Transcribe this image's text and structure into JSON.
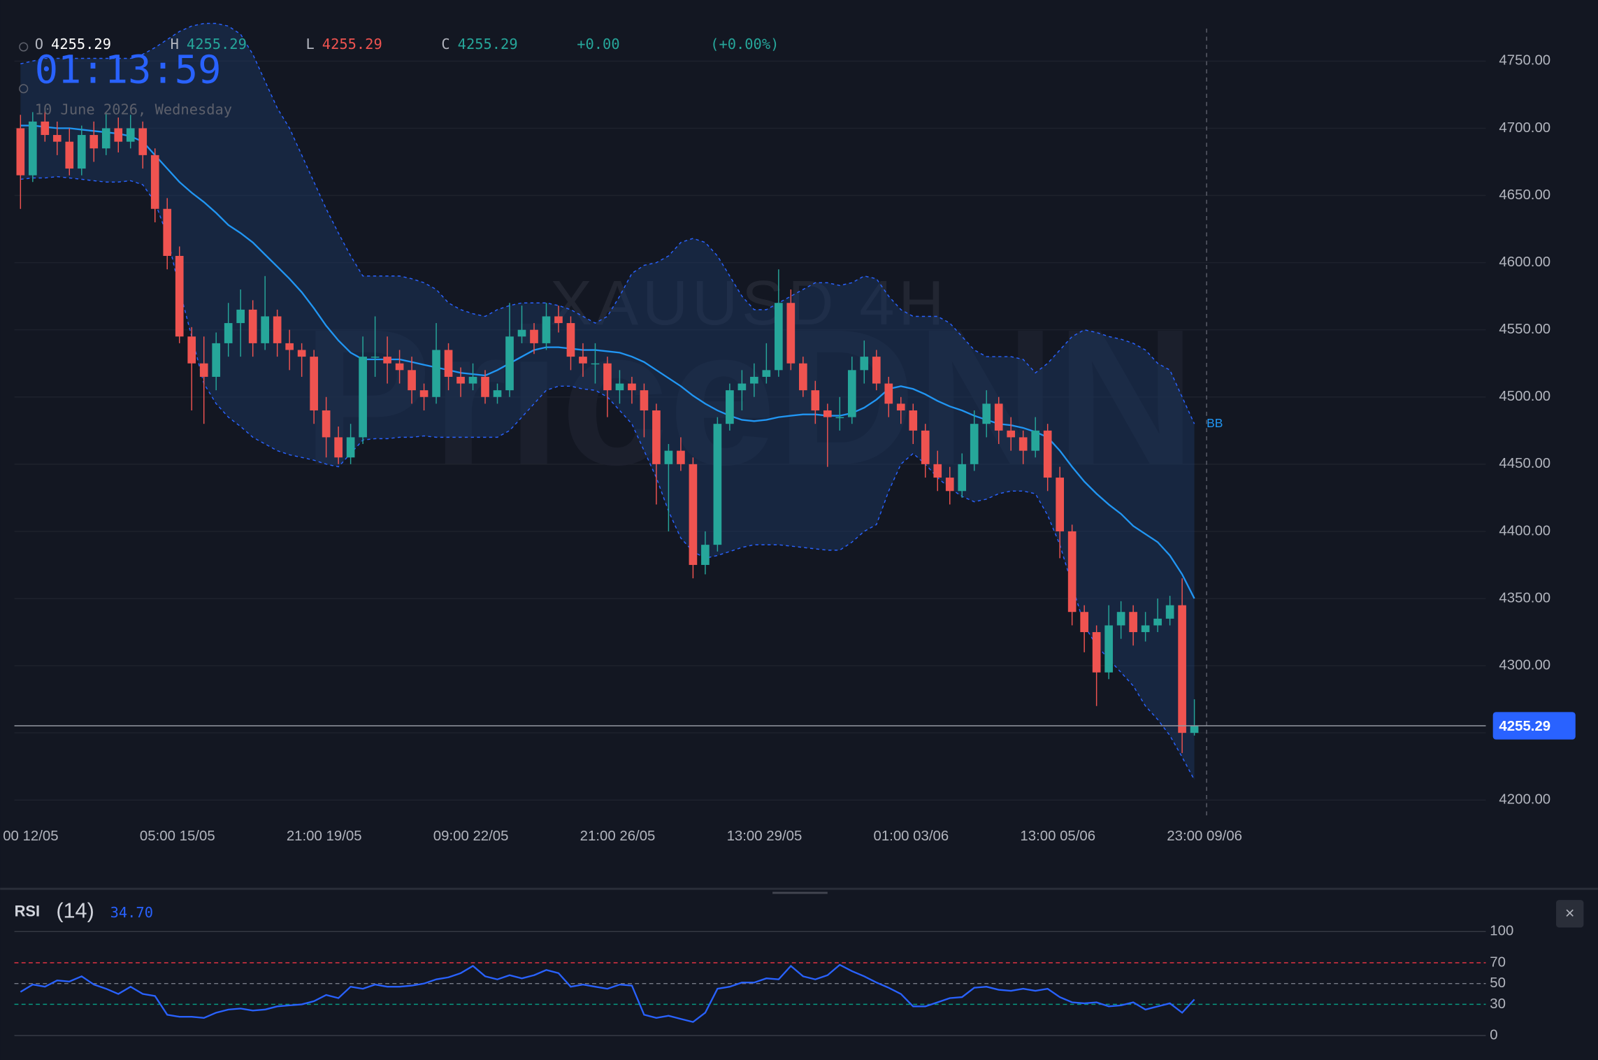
{
  "header": {
    "o_label": "O",
    "o": "4255.29",
    "h_label": "H",
    "h": "4255.29",
    "l_label": "L",
    "l": "4255.29",
    "c_label": "C",
    "c": "4255.29",
    "change": "+0.00",
    "change_pct": "(+0.00%)",
    "clock": "01:13:59",
    "date": "10 June 2026, Wednesday"
  },
  "chart_data": [
    {
      "type": "candlestick",
      "watermark": "XAUUSD 4H",
      "watermark_brand": "PriceDNN",
      "up_color": "#26a69a",
      "down_color": "#ef5350",
      "categories": [
        "00 12/05",
        null,
        null,
        null,
        null,
        null,
        null,
        null,
        null,
        null,
        null,
        null,
        "05:00 15/05",
        null,
        null,
        null,
        null,
        null,
        null,
        null,
        null,
        null,
        null,
        null,
        "21:00 19/05",
        null,
        null,
        null,
        null,
        null,
        null,
        null,
        null,
        null,
        null,
        null,
        "09:00 22/05",
        null,
        null,
        null,
        null,
        null,
        null,
        null,
        null,
        null,
        null,
        null,
        "21:00 26/05",
        null,
        null,
        null,
        null,
        null,
        null,
        null,
        null,
        null,
        null,
        null,
        "13:00 29/05",
        null,
        null,
        null,
        null,
        null,
        null,
        null,
        null,
        null,
        null,
        null,
        "01:00 03/06",
        null,
        null,
        null,
        null,
        null,
        null,
        null,
        null,
        null,
        null,
        null,
        "13:00 05/06",
        null,
        null,
        null,
        null,
        null,
        null,
        null,
        null,
        null,
        null,
        null,
        "23:00 09/06"
      ],
      "ohlc": [
        [
          4700,
          4710,
          4640,
          4665
        ],
        [
          4665,
          4712,
          4660,
          4705
        ],
        [
          4705,
          4715,
          4690,
          4695
        ],
        [
          4695,
          4705,
          4680,
          4690
        ],
        [
          4690,
          4700,
          4665,
          4670
        ],
        [
          4670,
          4702,
          4665,
          4695
        ],
        [
          4695,
          4705,
          4675,
          4685
        ],
        [
          4685,
          4712,
          4680,
          4700
        ],
        [
          4700,
          4708,
          4682,
          4690
        ],
        [
          4690,
          4710,
          4685,
          4700
        ],
        [
          4700,
          4705,
          4670,
          4680
        ],
        [
          4680,
          4685,
          4630,
          4640
        ],
        [
          4640,
          4648,
          4595,
          4605
        ],
        [
          4605,
          4612,
          4540,
          4545
        ],
        [
          4545,
          4552,
          4490,
          4525
        ],
        [
          4525,
          4545,
          4480,
          4515
        ],
        [
          4515,
          4548,
          4505,
          4540
        ],
        [
          4540,
          4570,
          4530,
          4555
        ],
        [
          4555,
          4580,
          4530,
          4565
        ],
        [
          4565,
          4572,
          4530,
          4540
        ],
        [
          4540,
          4590,
          4535,
          4560
        ],
        [
          4560,
          4565,
          4530,
          4540
        ],
        [
          4540,
          4550,
          4520,
          4535
        ],
        [
          4535,
          4540,
          4515,
          4530
        ],
        [
          4530,
          4535,
          4480,
          4490
        ],
        [
          4490,
          4500,
          4455,
          4470
        ],
        [
          4470,
          4478,
          4450,
          4455
        ],
        [
          4455,
          4480,
          4450,
          4470
        ],
        [
          4470,
          4545,
          4465,
          4530
        ],
        [
          4530,
          4560,
          4515,
          4530
        ],
        [
          4530,
          4545,
          4510,
          4525
        ],
        [
          4525,
          4535,
          4510,
          4520
        ],
        [
          4520,
          4530,
          4495,
          4505
        ],
        [
          4505,
          4510,
          4490,
          4500
        ],
        [
          4500,
          4555,
          4495,
          4535
        ],
        [
          4535,
          4540,
          4505,
          4515
        ],
        [
          4515,
          4522,
          4500,
          4510
        ],
        [
          4510,
          4525,
          4505,
          4515
        ],
        [
          4515,
          4520,
          4495,
          4500
        ],
        [
          4500,
          4510,
          4495,
          4505
        ],
        [
          4505,
          4570,
          4500,
          4545
        ],
        [
          4545,
          4568,
          4540,
          4550
        ],
        [
          4550,
          4555,
          4532,
          4540
        ],
        [
          4540,
          4570,
          4535,
          4560
        ],
        [
          4560,
          4568,
          4548,
          4555
        ],
        [
          4555,
          4560,
          4520,
          4530
        ],
        [
          4530,
          4540,
          4515,
          4525
        ],
        [
          4525,
          4540,
          4510,
          4525
        ],
        [
          4525,
          4530,
          4485,
          4505
        ],
        [
          4505,
          4520,
          4495,
          4510
        ],
        [
          4510,
          4515,
          4495,
          4505
        ],
        [
          4505,
          4510,
          4470,
          4490
        ],
        [
          4490,
          4495,
          4420,
          4450
        ],
        [
          4450,
          4465,
          4400,
          4460
        ],
        [
          4460,
          4470,
          4445,
          4450
        ],
        [
          4450,
          4455,
          4365,
          4375
        ],
        [
          4375,
          4400,
          4368,
          4390
        ],
        [
          4390,
          4485,
          4385,
          4480
        ],
        [
          4480,
          4510,
          4475,
          4505
        ],
        [
          4505,
          4520,
          4490,
          4510
        ],
        [
          4510,
          4525,
          4500,
          4515
        ],
        [
          4515,
          4540,
          4510,
          4520
        ],
        [
          4520,
          4595,
          4515,
          4570
        ],
        [
          4570,
          4580,
          4520,
          4525
        ],
        [
          4525,
          4530,
          4500,
          4505
        ],
        [
          4505,
          4512,
          4480,
          4490
        ],
        [
          4490,
          4495,
          4448,
          4485
        ],
        [
          4485,
          4500,
          4475,
          4485
        ],
        [
          4485,
          4530,
          4480,
          4520
        ],
        [
          4520,
          4542,
          4510,
          4530
        ],
        [
          4530,
          4535,
          4505,
          4510
        ],
        [
          4510,
          4515,
          4485,
          4495
        ],
        [
          4495,
          4500,
          4480,
          4490
        ],
        [
          4490,
          4495,
          4465,
          4475
        ],
        [
          4475,
          4480,
          4440,
          4450
        ],
        [
          4450,
          4460,
          4430,
          4440
        ],
        [
          4440,
          4448,
          4420,
          4430
        ],
        [
          4430,
          4458,
          4425,
          4450
        ],
        [
          4450,
          4490,
          4445,
          4480
        ],
        [
          4480,
          4505,
          4470,
          4495
        ],
        [
          4495,
          4500,
          4465,
          4475
        ],
        [
          4475,
          4485,
          4460,
          4470
        ],
        [
          4470,
          4475,
          4450,
          4460
        ],
        [
          4460,
          4485,
          4455,
          4475
        ],
        [
          4475,
          4480,
          4430,
          4440
        ],
        [
          4440,
          4448,
          4380,
          4400
        ],
        [
          4400,
          4405,
          4330,
          4340
        ],
        [
          4340,
          4345,
          4310,
          4325
        ],
        [
          4325,
          4330,
          4270,
          4295
        ],
        [
          4295,
          4345,
          4290,
          4330
        ],
        [
          4330,
          4348,
          4320,
          4340
        ],
        [
          4340,
          4345,
          4315,
          4325
        ],
        [
          4325,
          4340,
          4318,
          4330
        ],
        [
          4330,
          4350,
          4325,
          4335
        ],
        [
          4335,
          4352,
          4330,
          4345
        ],
        [
          4345,
          4365,
          4235,
          4250
        ],
        [
          4250,
          4275,
          4248,
          4255
        ]
      ],
      "bands": {
        "label": "BB",
        "line_color": "#2196f3",
        "band_color": "#2962ff",
        "fill_color": "#1c3a66",
        "upper": [
          4748,
          4750,
          4752,
          4752,
          4752,
          4752,
          4752,
          4752,
          4752,
          4752,
          4755,
          4760,
          4766,
          4772,
          4776,
          4778,
          4778,
          4776,
          4770,
          4755,
          4735,
          4715,
          4700,
          4680,
          4660,
          4640,
          4622,
          4605,
          4590,
          4590,
          4590,
          4590,
          4588,
          4585,
          4580,
          4570,
          4565,
          4562,
          4560,
          4565,
          4568,
          4570,
          4570,
          4570,
          4568,
          4565,
          4560,
          4555,
          4560,
          4575,
          4592,
          4598,
          4600,
          4605,
          4615,
          4618,
          4615,
          4605,
          4590,
          4575,
          4565,
          4565,
          4570,
          4575,
          4580,
          4585,
          4585,
          4583,
          4585,
          4590,
          4588,
          4575,
          4565,
          4560,
          4560,
          4560,
          4555,
          4545,
          4535,
          4530,
          4530,
          4530,
          4528,
          4518,
          4525,
          4535,
          4545,
          4550,
          4548,
          4545,
          4543,
          4540,
          4535,
          4525,
          4520,
          4500,
          4480
        ],
        "middle": [
          4702,
          4702,
          4701,
          4700,
          4700,
          4699,
          4698,
          4697,
          4696,
          4694,
          4690,
          4680,
          4670,
          4660,
          4652,
          4645,
          4637,
          4628,
          4622,
          4615,
          4606,
          4597,
          4588,
          4578,
          4566,
          4553,
          4542,
          4533,
          4528,
          4528,
          4528,
          4528,
          4526,
          4524,
          4522,
          4520,
          4518,
          4517,
          4516,
          4520,
          4525,
          4530,
          4535,
          4537,
          4537,
          4536,
          4535,
          4535,
          4534,
          4533,
          4530,
          4526,
          4520,
          4514,
          4508,
          4501,
          4495,
          4490,
          4486,
          4483,
          4482,
          4483,
          4485,
          4486,
          4487,
          4487,
          4486,
          4486,
          4488,
          4492,
          4498,
          4506,
          4508,
          4506,
          4502,
          4497,
          4493,
          4490,
          4486,
          4483,
          4480,
          4479,
          4477,
          4474,
          4470,
          4460,
          4448,
          4437,
          4428,
          4420,
          4413,
          4404,
          4398,
          4392,
          4382,
          4368,
          4350
        ],
        "lower": [
          4662,
          4663,
          4663,
          4664,
          4663,
          4662,
          4661,
          4660,
          4660,
          4661,
          4658,
          4645,
          4620,
          4580,
          4545,
          4510,
          4495,
          4485,
          4478,
          4470,
          4465,
          4460,
          4457,
          4455,
          4453,
          4450,
          4448,
          4458,
          4468,
          4469,
          4469,
          4470,
          4470,
          4471,
          4470,
          4470,
          4470,
          4470,
          4470,
          4470,
          4475,
          4485,
          4495,
          4505,
          4508,
          4508,
          4506,
          4505,
          4500,
          4490,
          4480,
          4460,
          4440,
          4415,
          4395,
          4385,
          4380,
          4382,
          4385,
          4388,
          4390,
          4390,
          4390,
          4389,
          4388,
          4387,
          4386,
          4386,
          4392,
          4400,
          4405,
          4430,
          4450,
          4458,
          4450,
          4440,
          4432,
          4426,
          4422,
          4424,
          4428,
          4430,
          4430,
          4428,
          4412,
          4390,
          4360,
          4330,
          4315,
          4305,
          4295,
          4285,
          4270,
          4260,
          4248,
          4232,
          4215
        ]
      },
      "ylim": [
        4188.6,
        4772.7
      ],
      "yticks": [
        {
          "value": 4750,
          "label": "4750.00"
        },
        {
          "value": 4700,
          "label": "4700.00"
        },
        {
          "value": 4650,
          "label": "4650.00"
        },
        {
          "value": 4600,
          "label": "4600.00"
        },
        {
          "value": 4550,
          "label": "4550.00"
        },
        {
          "value": 4500,
          "label": "4500.00"
        },
        {
          "value": 4450,
          "label": "4450.00"
        },
        {
          "value": 4400,
          "label": "4400.00"
        },
        {
          "value": 4350,
          "label": "4350.00"
        },
        {
          "value": 4300,
          "label": "4300.00"
        },
        {
          "value": 4250,
          "label": "4250.00"
        },
        {
          "value": 4200,
          "label": "4200.00"
        }
      ],
      "last_price": 4255.29,
      "last_price_color": "#2962ff",
      "grid": true
    },
    {
      "type": "line",
      "title": "RSI",
      "param": "(14)",
      "value_label": "34.70",
      "color": "#2962ff",
      "values": [
        42,
        49,
        47,
        53,
        52,
        57,
        49,
        45,
        40,
        47,
        40,
        38,
        20,
        18,
        18,
        17,
        22,
        25,
        26,
        24,
        25,
        28,
        29,
        30,
        33,
        39,
        36,
        47,
        45,
        49,
        47,
        47,
        48,
        50,
        54,
        56,
        60,
        67,
        57,
        54,
        58,
        55,
        58,
        63,
        60,
        47,
        49,
        47,
        45,
        49,
        48,
        20,
        17,
        19,
        16,
        13,
        22,
        45,
        47,
        51,
        51,
        55,
        54,
        67,
        57,
        54,
        58,
        68,
        62,
        57,
        51,
        46,
        40,
        28,
        28,
        32,
        36,
        37,
        46,
        47,
        44,
        43,
        45,
        43,
        45,
        37,
        32,
        31,
        32,
        28,
        29,
        32,
        25,
        28,
        31,
        22,
        34.7
      ],
      "ylim": [
        0,
        100
      ],
      "yticks": [
        100,
        70,
        50,
        30,
        0
      ],
      "ytick_colors": [
        "#363a45",
        "#f23645",
        "#787b86",
        "#089981",
        "#363a45"
      ],
      "close_label": "×"
    }
  ]
}
